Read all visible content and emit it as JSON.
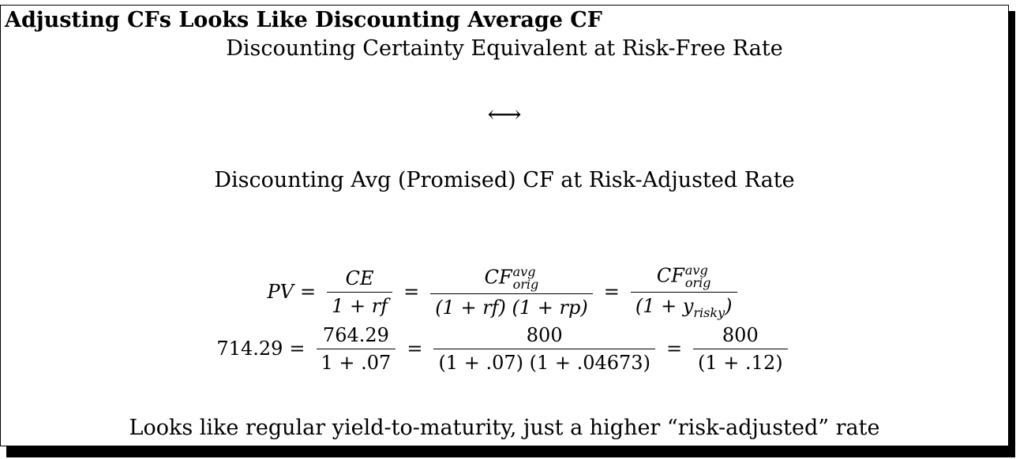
{
  "title": "Adjusting CFs Looks Like Discounting Average CF",
  "line1": "Discounting Certainty Equivalent at Risk-Free Rate",
  "arrow": "⟷",
  "line2": "Discounting Avg (Promised) CF at Risk-Adjusted Rate",
  "eq1": {
    "lhs": "PV",
    "f1_num": "CE",
    "f1_den": "1 + rf",
    "f2_num_base": "CF",
    "f2_num_sup": "avg",
    "f2_num_sub": "orig",
    "f2_den": "(1 + rf) (1 + rp)",
    "f3_num_base": "CF",
    "f3_num_sup": "avg",
    "f3_num_sub": "orig",
    "f3_den_pre": "(1 + y",
    "f3_den_sub": "risky",
    "f3_den_post": ")"
  },
  "eq2": {
    "lhs": "714.29",
    "f1_num": "764.29",
    "f1_den": "1 + .07",
    "f2_num": "800",
    "f2_den": "(1 + .07) (1 + .04673)",
    "f3_num": "800",
    "f3_den": "(1 + .12)"
  },
  "eq_symbol": "=",
  "footer": "Looks like regular yield-to-maturity, just a higher “risk-adjusted” rate"
}
